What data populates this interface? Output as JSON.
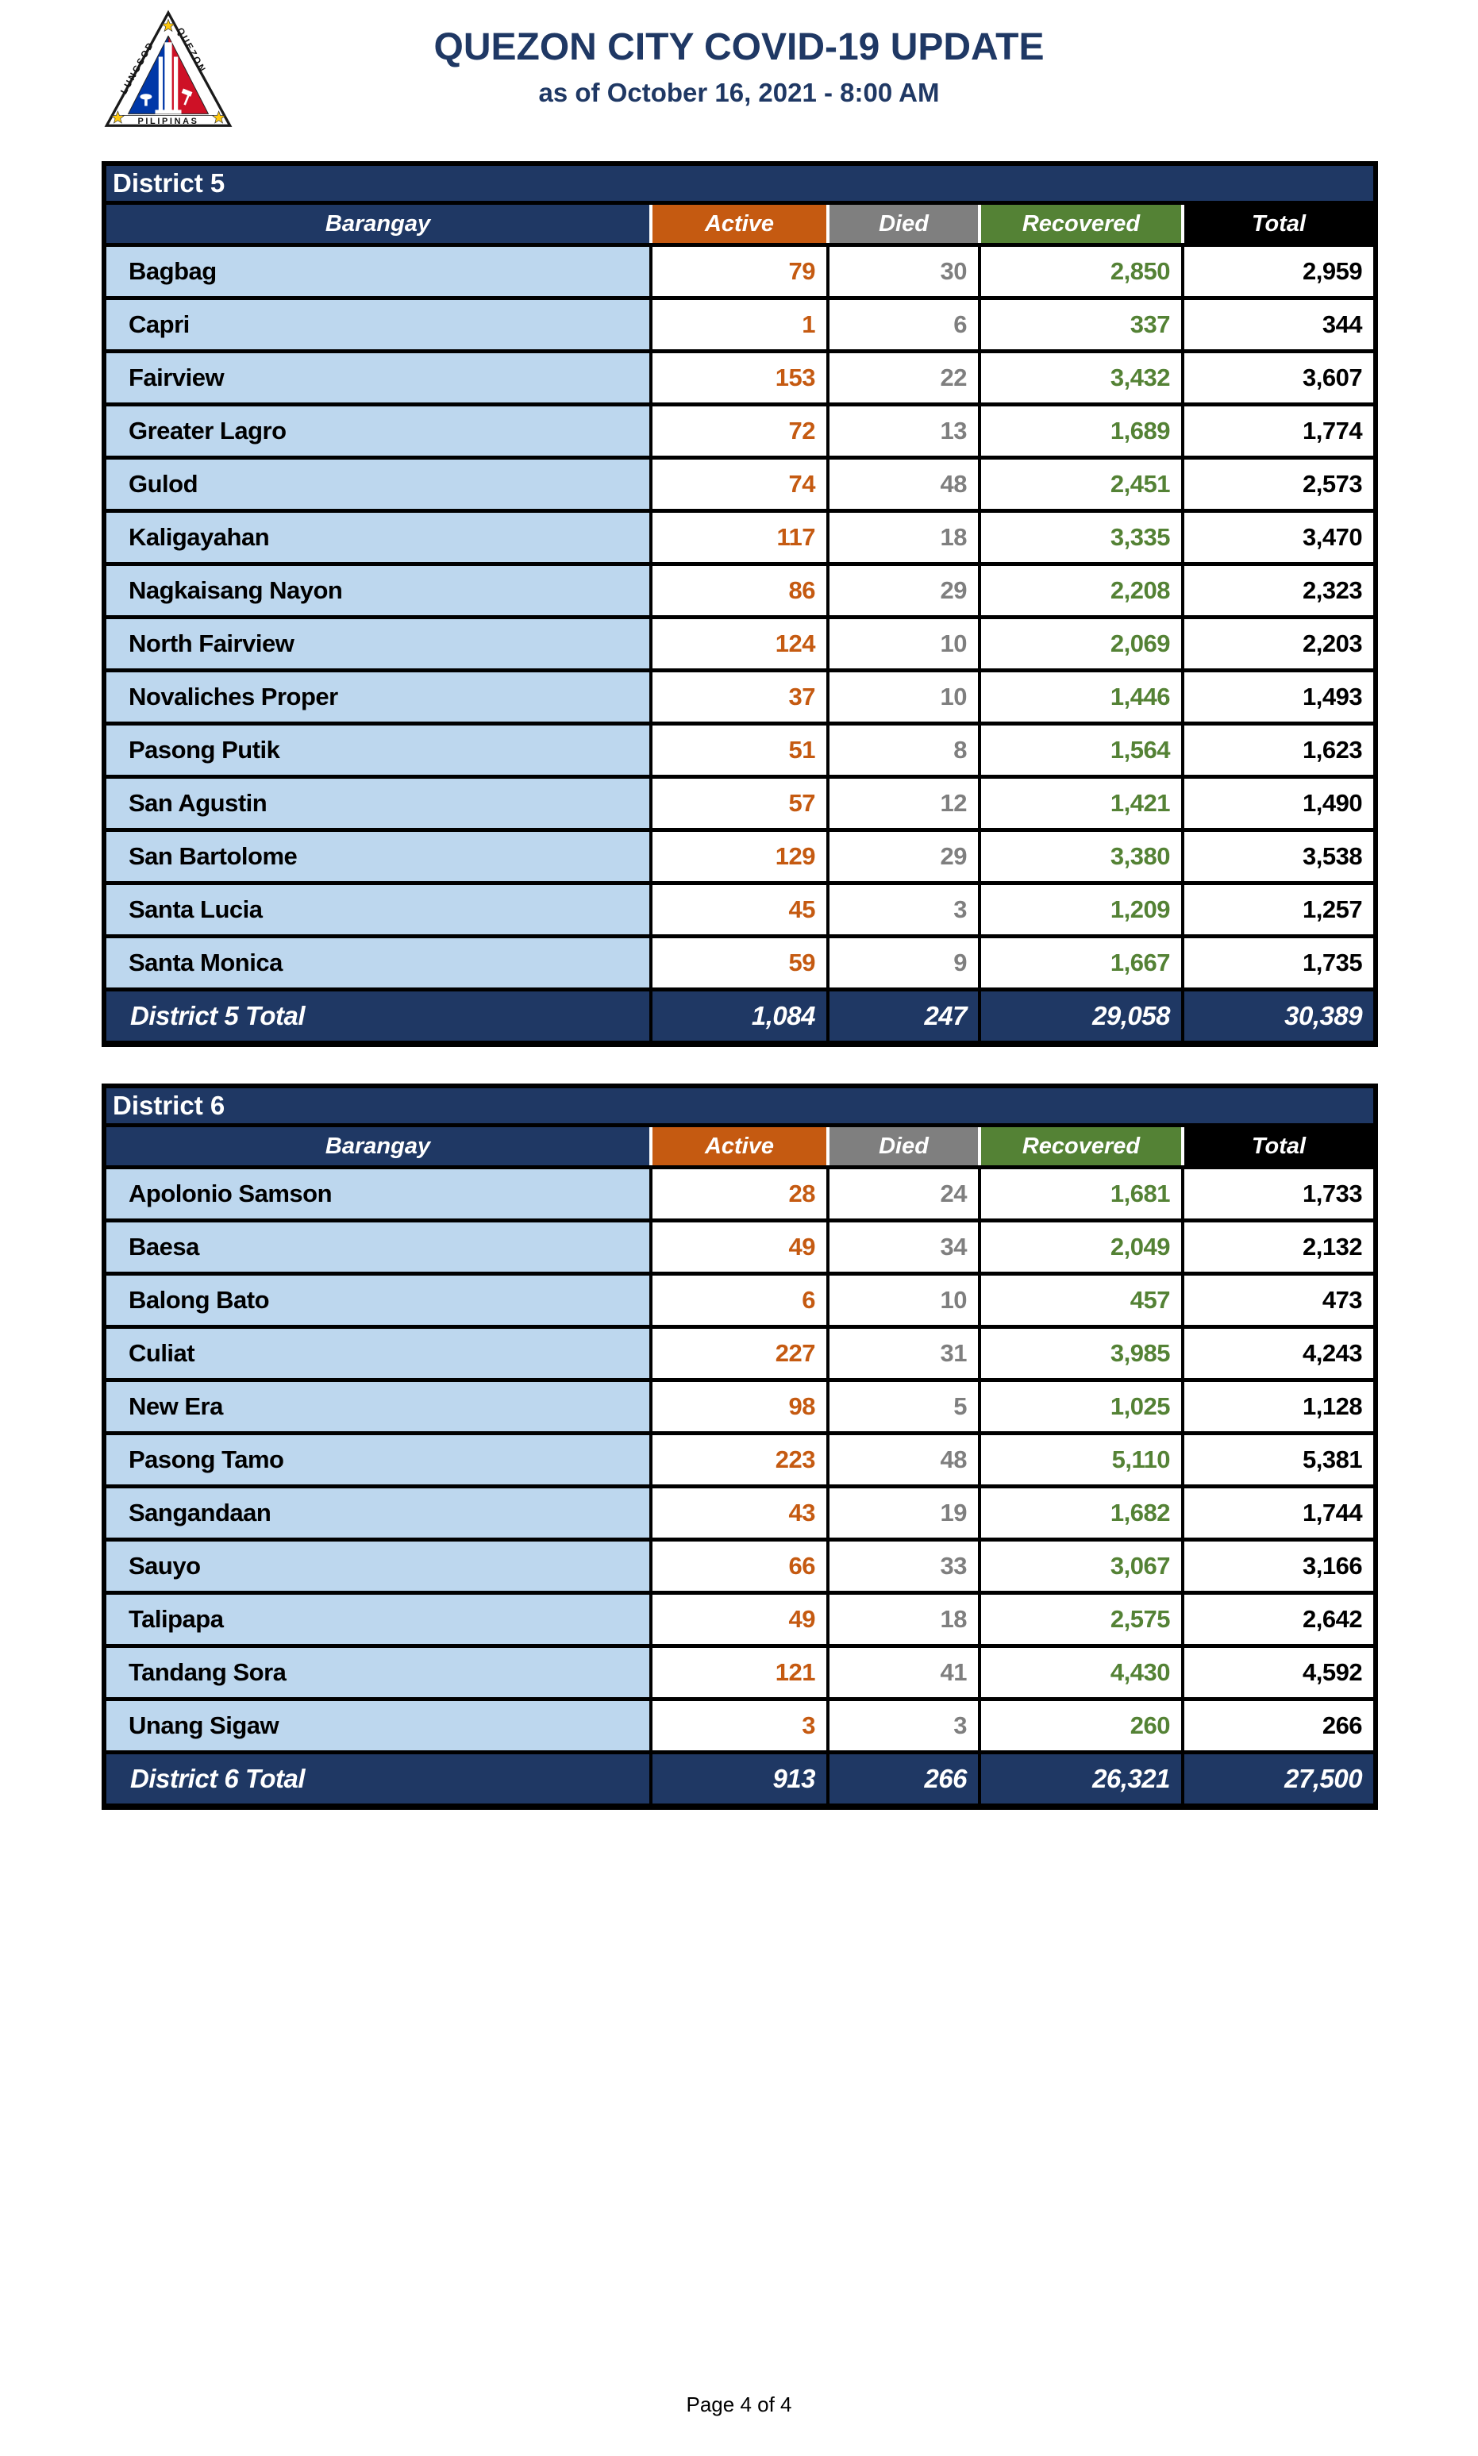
{
  "page": {
    "title": "QUEZON CITY COVID-19 UPDATE",
    "subtitle": "as of October 16, 2021 - 8:00 AM",
    "page_label": "Page 4 of 4"
  },
  "logo": {
    "text_left": "LUNGSOD",
    "text_right": "QUEZON",
    "text_bottom": "PILIPINAS"
  },
  "columns": [
    "Barangay",
    "Active",
    "Died",
    "Recovered",
    "Total"
  ],
  "colors": {
    "navy": "#1F3864",
    "active_orange": "#C55A11",
    "died_gray": "#7F7F7F",
    "recovered_green": "#548235",
    "total_black": "#000000",
    "row_blue": "#BDD7EE",
    "title_navy": "#1F3864"
  },
  "tables": [
    {
      "district": "District 5",
      "rows": [
        [
          "Bagbag",
          "79",
          "30",
          "2,850",
          "2,959"
        ],
        [
          "Capri",
          "1",
          "6",
          "337",
          "344"
        ],
        [
          "Fairview",
          "153",
          "22",
          "3,432",
          "3,607"
        ],
        [
          "Greater Lagro",
          "72",
          "13",
          "1,689",
          "1,774"
        ],
        [
          "Gulod",
          "74",
          "48",
          "2,451",
          "2,573"
        ],
        [
          "Kaligayahan",
          "117",
          "18",
          "3,335",
          "3,470"
        ],
        [
          "Nagkaisang Nayon",
          "86",
          "29",
          "2,208",
          "2,323"
        ],
        [
          "North Fairview",
          "124",
          "10",
          "2,069",
          "2,203"
        ],
        [
          "Novaliches Proper",
          "37",
          "10",
          "1,446",
          "1,493"
        ],
        [
          "Pasong Putik",
          "51",
          "8",
          "1,564",
          "1,623"
        ],
        [
          "San Agustin",
          "57",
          "12",
          "1,421",
          "1,490"
        ],
        [
          "San Bartolome",
          "129",
          "29",
          "3,380",
          "3,538"
        ],
        [
          "Santa Lucia",
          "45",
          "3",
          "1,209",
          "1,257"
        ],
        [
          "Santa Monica",
          "59",
          "9",
          "1,667",
          "1,735"
        ]
      ],
      "total": {
        "label": "District 5 Total",
        "active": "1,084",
        "died": "247",
        "recovered": "29,058",
        "total": "30,389"
      }
    },
    {
      "district": "District 6",
      "rows": [
        [
          "Apolonio Samson",
          "28",
          "24",
          "1,681",
          "1,733"
        ],
        [
          "Baesa",
          "49",
          "34",
          "2,049",
          "2,132"
        ],
        [
          "Balong Bato",
          "6",
          "10",
          "457",
          "473"
        ],
        [
          "Culiat",
          "227",
          "31",
          "3,985",
          "4,243"
        ],
        [
          "New Era",
          "98",
          "5",
          "1,025",
          "1,128"
        ],
        [
          "Pasong Tamo",
          "223",
          "48",
          "5,110",
          "5,381"
        ],
        [
          "Sangandaan",
          "43",
          "19",
          "1,682",
          "1,744"
        ],
        [
          "Sauyo",
          "66",
          "33",
          "3,067",
          "3,166"
        ],
        [
          "Talipapa",
          "49",
          "18",
          "2,575",
          "2,642"
        ],
        [
          "Tandang Sora",
          "121",
          "41",
          "4,430",
          "4,592"
        ],
        [
          "Unang Sigaw",
          "3",
          "3",
          "260",
          "266"
        ]
      ],
      "total": {
        "label": "District 6 Total",
        "active": "913",
        "died": "266",
        "recovered": "26,321",
        "total": "27,500"
      }
    }
  ]
}
